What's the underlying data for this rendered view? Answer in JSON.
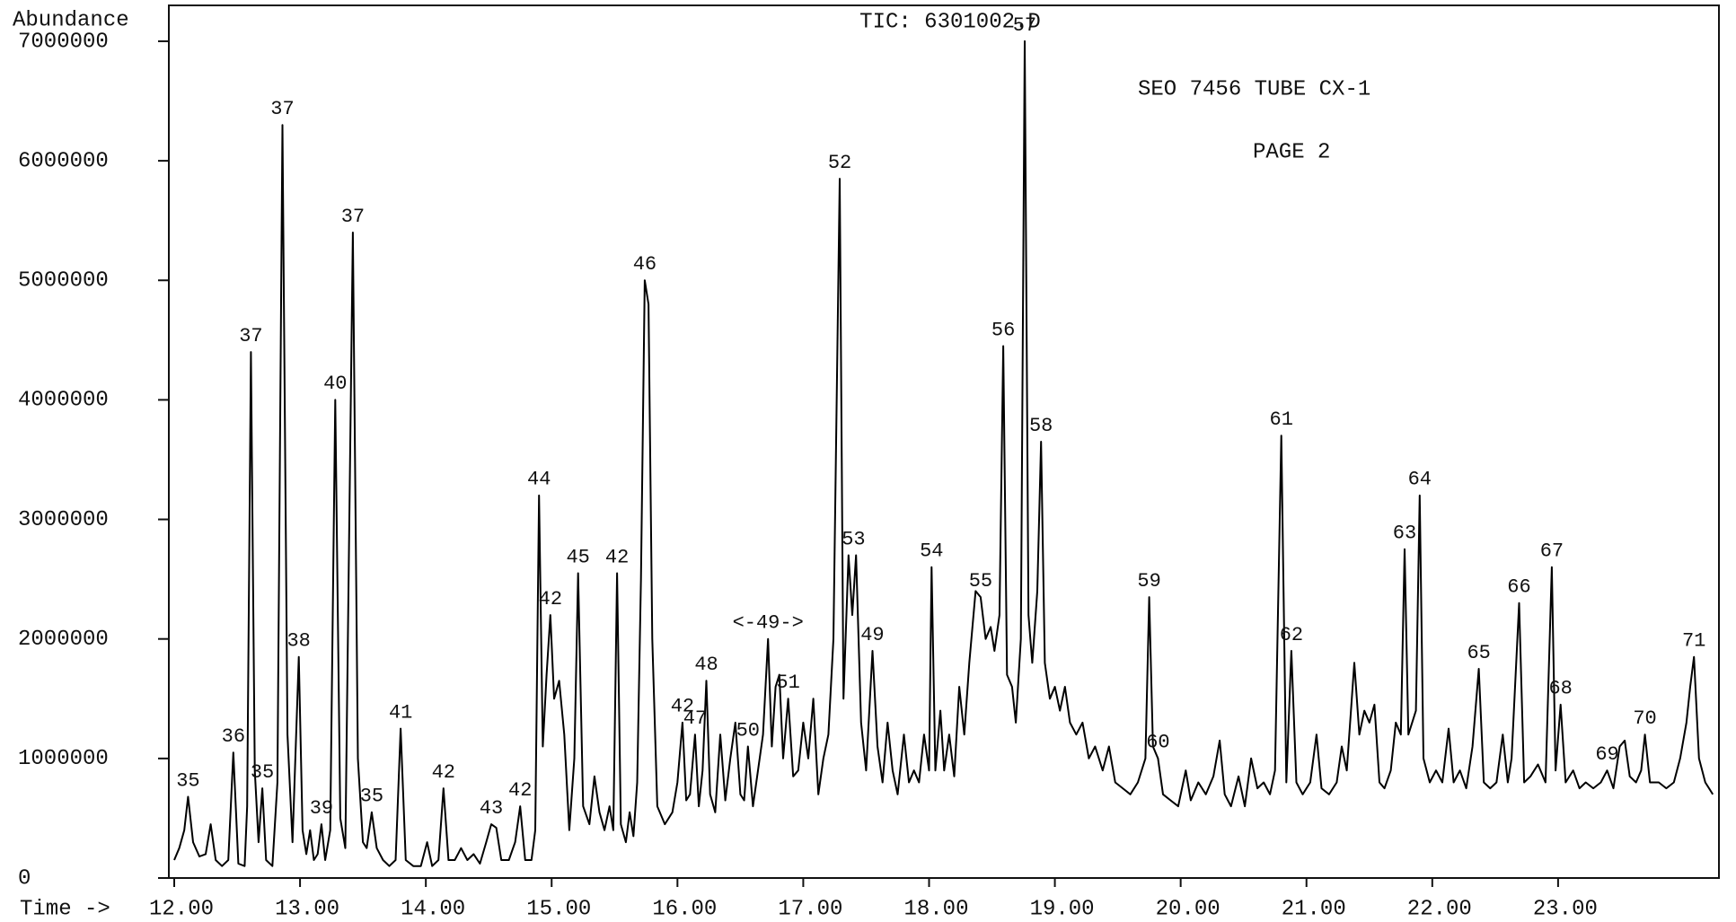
{
  "chart_data": {
    "type": "line",
    "title": "TIC: 6301002.D",
    "y_label": "Abundance",
    "x_label": "Time ->",
    "notes": [
      "SEO 7456 TUBE CX-1",
      "PAGE 2"
    ],
    "color": "#000000",
    "xlim": [
      12,
      24.25
    ],
    "ylim": [
      0,
      7300000
    ],
    "xticks": [
      {
        "value": 12,
        "label": "12.00"
      },
      {
        "value": 13,
        "label": "13.00"
      },
      {
        "value": 14,
        "label": "14.00"
      },
      {
        "value": 15,
        "label": "15.00"
      },
      {
        "value": 16,
        "label": "16.00"
      },
      {
        "value": 17,
        "label": "17.00"
      },
      {
        "value": 18,
        "label": "18.00"
      },
      {
        "value": 19,
        "label": "19.00"
      },
      {
        "value": 20,
        "label": "20.00"
      },
      {
        "value": 21,
        "label": "21.00"
      },
      {
        "value": 22,
        "label": "22.00"
      },
      {
        "value": 23,
        "label": "23.00"
      }
    ],
    "yticks": [
      0,
      1000000,
      2000000,
      3000000,
      4000000,
      5000000,
      6000000,
      7000000
    ],
    "x": [
      12.0,
      12.04,
      12.08,
      12.11,
      12.15,
      12.2,
      12.25,
      12.29,
      12.33,
      12.38,
      12.43,
      12.47,
      12.51,
      12.56,
      12.58,
      12.61,
      12.64,
      12.67,
      12.7,
      12.73,
      12.78,
      12.82,
      12.86,
      12.9,
      12.94,
      12.99,
      13.02,
      13.05,
      13.08,
      13.11,
      13.14,
      13.17,
      13.2,
      13.24,
      13.28,
      13.32,
      13.36,
      13.42,
      13.46,
      13.5,
      13.53,
      13.57,
      13.61,
      13.66,
      13.71,
      13.76,
      13.8,
      13.84,
      13.9,
      13.96,
      14.01,
      14.05,
      14.1,
      14.14,
      14.18,
      14.23,
      14.28,
      14.33,
      14.38,
      14.43,
      14.48,
      14.52,
      14.56,
      14.6,
      14.66,
      14.71,
      14.75,
      14.79,
      14.84,
      14.87,
      14.9,
      14.93,
      14.96,
      14.99,
      15.02,
      15.06,
      15.1,
      15.14,
      15.18,
      15.21,
      15.25,
      15.3,
      15.34,
      15.38,
      15.42,
      15.46,
      15.49,
      15.52,
      15.55,
      15.59,
      15.62,
      15.65,
      15.68,
      15.71,
      15.74,
      15.77,
      15.8,
      15.84,
      15.9,
      15.96,
      16.0,
      16.04,
      16.07,
      16.1,
      16.14,
      16.17,
      16.2,
      16.23,
      16.26,
      16.3,
      16.34,
      16.38,
      16.42,
      16.46,
      16.5,
      16.53,
      16.56,
      16.6,
      16.64,
      16.68,
      16.72,
      16.75,
      16.78,
      16.81,
      16.84,
      16.88,
      16.92,
      16.96,
      17.0,
      17.04,
      17.08,
      17.12,
      17.16,
      17.2,
      17.24,
      17.29,
      17.32,
      17.36,
      17.39,
      17.42,
      17.46,
      17.5,
      17.55,
      17.59,
      17.63,
      17.67,
      17.71,
      17.75,
      17.8,
      17.84,
      17.88,
      17.92,
      17.96,
      18.0,
      18.02,
      18.05,
      18.09,
      18.12,
      18.16,
      18.2,
      18.24,
      18.28,
      18.32,
      18.37,
      18.41,
      18.45,
      18.49,
      18.52,
      18.56,
      18.59,
      18.62,
      18.66,
      18.69,
      18.73,
      18.76,
      18.79,
      18.82,
      18.86,
      18.89,
      18.92,
      18.96,
      19.0,
      19.04,
      19.08,
      19.12,
      19.17,
      19.22,
      19.27,
      19.32,
      19.38,
      19.43,
      19.48,
      19.54,
      19.6,
      19.66,
      19.72,
      19.75,
      19.78,
      19.82,
      19.86,
      19.92,
      19.98,
      20.04,
      20.08,
      20.14,
      20.2,
      20.26,
      20.31,
      20.35,
      20.4,
      20.46,
      20.51,
      20.56,
      20.61,
      20.66,
      20.71,
      20.75,
      20.8,
      20.84,
      20.88,
      20.92,
      20.97,
      21.03,
      21.08,
      21.12,
      21.18,
      21.24,
      21.28,
      21.32,
      21.38,
      21.42,
      21.46,
      21.5,
      21.54,
      21.58,
      21.62,
      21.67,
      21.71,
      21.75,
      21.78,
      21.81,
      21.84,
      21.87,
      21.9,
      21.93,
      21.98,
      22.03,
      22.08,
      22.13,
      22.17,
      22.22,
      22.27,
      22.32,
      22.37,
      22.41,
      22.46,
      22.51,
      22.56,
      22.6,
      22.63,
      22.69,
      22.73,
      22.78,
      22.84,
      22.9,
      22.95,
      22.98,
      23.02,
      23.06,
      23.12,
      23.17,
      23.22,
      23.28,
      23.34,
      23.39,
      23.44,
      23.49,
      23.53,
      23.57,
      23.62,
      23.66,
      23.69,
      23.73,
      23.8,
      23.86,
      23.92,
      23.97,
      24.02,
      24.05,
      24.08,
      24.12,
      24.17,
      24.23
    ],
    "values": [
      150000,
      250000,
      400000,
      680000,
      300000,
      180000,
      200000,
      450000,
      150000,
      100000,
      150000,
      1050000,
      120000,
      100000,
      600000,
      4400000,
      900000,
      300000,
      750000,
      150000,
      100000,
      800000,
      6300000,
      1200000,
      300000,
      1850000,
      400000,
      200000,
      400000,
      150000,
      200000,
      450000,
      150000,
      400000,
      4000000,
      500000,
      250000,
      5400000,
      1000000,
      300000,
      250000,
      550000,
      250000,
      150000,
      100000,
      150000,
      1250000,
      150000,
      100000,
      100000,
      300000,
      100000,
      150000,
      750000,
      150000,
      150000,
      250000,
      150000,
      200000,
      120000,
      300000,
      450000,
      420000,
      150000,
      150000,
      300000,
      600000,
      150000,
      150000,
      400000,
      3200000,
      1100000,
      1700000,
      2200000,
      1500000,
      1650000,
      1200000,
      400000,
      1000000,
      2550000,
      600000,
      450000,
      850000,
      550000,
      400000,
      600000,
      400000,
      2550000,
      450000,
      300000,
      550000,
      350000,
      800000,
      2500000,
      5000000,
      4800000,
      2000000,
      600000,
      450000,
      550000,
      800000,
      1300000,
      650000,
      700000,
      1200000,
      600000,
      900000,
      1650000,
      700000,
      550000,
      1200000,
      650000,
      1000000,
      1300000,
      700000,
      650000,
      1100000,
      600000,
      900000,
      1200000,
      2000000,
      1100000,
      1600000,
      1700000,
      1000000,
      1500000,
      850000,
      900000,
      1300000,
      1000000,
      1500000,
      700000,
      1000000,
      1200000,
      2000000,
      5850000,
      1500000,
      2700000,
      2200000,
      2700000,
      1300000,
      900000,
      1900000,
      1100000,
      800000,
      1300000,
      900000,
      700000,
      1200000,
      800000,
      900000,
      800000,
      1200000,
      900000,
      2600000,
      900000,
      1400000,
      900000,
      1200000,
      850000,
      1600000,
      1200000,
      1800000,
      2400000,
      2350000,
      2000000,
      2100000,
      1900000,
      2200000,
      4450000,
      1700000,
      1600000,
      1300000,
      2000000,
      7000000,
      2200000,
      1800000,
      2400000,
      3650000,
      1800000,
      1500000,
      1600000,
      1400000,
      1600000,
      1300000,
      1200000,
      1300000,
      1000000,
      1100000,
      900000,
      1100000,
      800000,
      750000,
      700000,
      800000,
      1000000,
      2350000,
      1100000,
      1000000,
      700000,
      650000,
      600000,
      900000,
      650000,
      800000,
      700000,
      850000,
      1150000,
      700000,
      600000,
      850000,
      600000,
      1000000,
      750000,
      800000,
      700000,
      900000,
      3700000,
      800000,
      1900000,
      800000,
      700000,
      800000,
      1200000,
      750000,
      700000,
      800000,
      1100000,
      900000,
      1800000,
      1200000,
      1400000,
      1300000,
      1450000,
      800000,
      750000,
      900000,
      1300000,
      1200000,
      2750000,
      1200000,
      1300000,
      1400000,
      3200000,
      1000000,
      800000,
      900000,
      800000,
      1250000,
      800000,
      900000,
      750000,
      1100000,
      1750000,
      800000,
      750000,
      800000,
      1200000,
      800000,
      1000000,
      2300000,
      800000,
      850000,
      950000,
      800000,
      2600000,
      900000,
      1450000,
      800000,
      900000,
      750000,
      800000,
      750000,
      800000,
      900000,
      750000,
      1100000,
      1150000,
      850000,
      800000,
      900000,
      1200000,
      800000,
      800000,
      750000,
      800000,
      1000000,
      1300000,
      1600000,
      1850000,
      1000000,
      800000,
      700000
    ],
    "peaks": [
      {
        "label": "35",
        "x": 12.11
      },
      {
        "label": "36",
        "x": 12.47
      },
      {
        "label": "37",
        "x": 12.61
      },
      {
        "label": "35",
        "x": 12.7
      },
      {
        "label": "37",
        "x": 12.86
      },
      {
        "label": "38",
        "x": 12.99
      },
      {
        "label": "39",
        "x": 13.17
      },
      {
        "label": "40",
        "x": 13.28
      },
      {
        "label": "37",
        "x": 13.42
      },
      {
        "label": "35",
        "x": 13.57
      },
      {
        "label": "41",
        "x": 13.8
      },
      {
        "label": "42",
        "x": 14.14
      },
      {
        "label": "43",
        "x": 14.52
      },
      {
        "label": "42",
        "x": 14.75
      },
      {
        "label": "44",
        "x": 14.9
      },
      {
        "label": "42",
        "x": 14.99
      },
      {
        "label": "45",
        "x": 15.21
      },
      {
        "label": "42",
        "x": 15.52
      },
      {
        "label": "46",
        "x": 15.74
      },
      {
        "label": "42",
        "x": 16.04
      },
      {
        "label": "47",
        "x": 16.14
      },
      {
        "label": "48",
        "x": 16.23
      },
      {
        "label": "50",
        "x": 16.56
      },
      {
        "label": "<-49->",
        "x": 16.72
      },
      {
        "label": "51",
        "x": 16.88
      },
      {
        "label": "52",
        "x": 17.29
      },
      {
        "label": "53",
        "x": 17.4
      },
      {
        "label": "49",
        "x": 17.55
      },
      {
        "label": "54",
        "x": 18.02
      },
      {
        "label": "55",
        "x": 18.41
      },
      {
        "label": "56",
        "x": 18.59
      },
      {
        "label": "57",
        "x": 18.76
      },
      {
        "label": "58",
        "x": 18.89
      },
      {
        "label": "59",
        "x": 19.75
      },
      {
        "label": "60",
        "x": 19.82
      },
      {
        "label": "61",
        "x": 20.8
      },
      {
        "label": "62",
        "x": 20.88
      },
      {
        "label": "63",
        "x": 21.78
      },
      {
        "label": "64",
        "x": 21.9
      },
      {
        "label": "65",
        "x": 22.37
      },
      {
        "label": "66",
        "x": 22.69
      },
      {
        "label": "67",
        "x": 22.95
      },
      {
        "label": "68",
        "x": 23.02
      },
      {
        "label": "69",
        "x": 23.39
      },
      {
        "label": "70",
        "x": 23.69
      },
      {
        "label": "71",
        "x": 24.08
      }
    ]
  }
}
